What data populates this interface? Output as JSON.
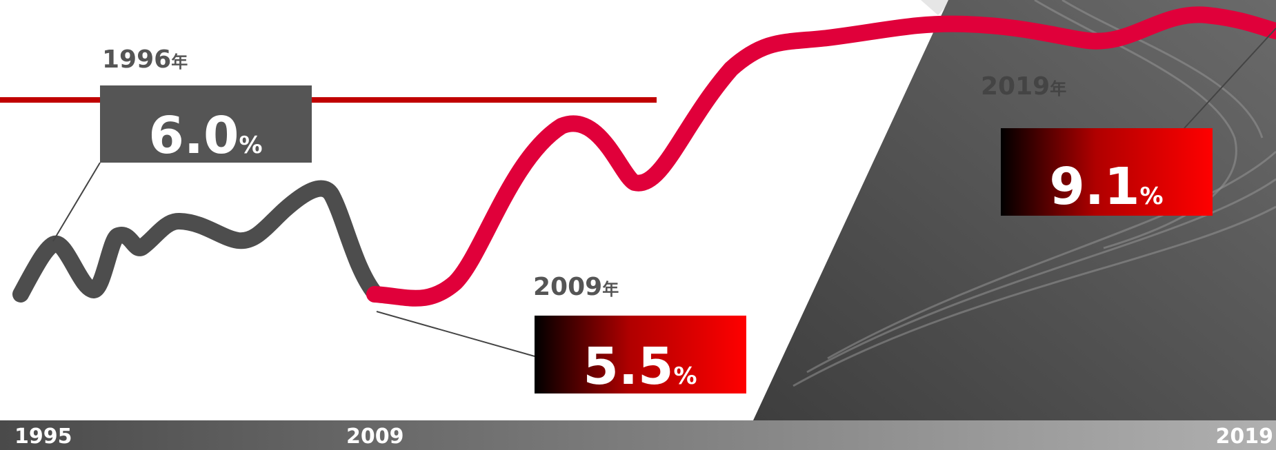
{
  "callouts": [
    {
      "year": "1996",
      "year_unit": "年",
      "value": "6.0",
      "unit": "%"
    },
    {
      "year": "2009",
      "year_unit": "年",
      "value": "5.5",
      "unit": "%"
    },
    {
      "year": "2019",
      "year_unit": "年",
      "value": "9.1",
      "unit": "%"
    }
  ],
  "axis": {
    "labels": [
      "1995",
      "2009",
      "2019"
    ]
  }
}
